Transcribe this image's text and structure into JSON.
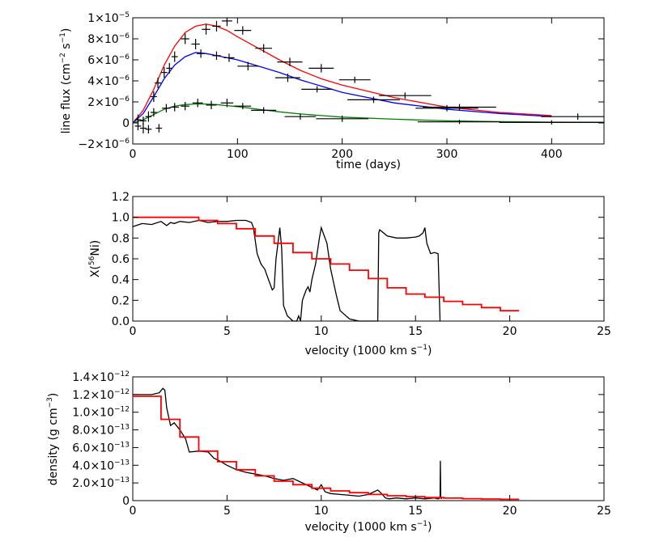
{
  "chart_data": [
    {
      "id": "lightcurve",
      "type": "line",
      "xlabel": "time (days)",
      "ylabel_parts": {
        "pre": "line flux (cm",
        "exp1": "−2",
        "mid": " s",
        "exp2": "−1",
        "post": ")"
      },
      "xlim": [
        0,
        450
      ],
      "ylim": [
        -2e-06,
        1e-05
      ],
      "xticks": [
        {
          "v": 0,
          "label": "0"
        },
        {
          "v": 100,
          "label": "100"
        },
        {
          "v": 200,
          "label": "200"
        },
        {
          "v": 300,
          "label": "300"
        },
        {
          "v": 400,
          "label": "400"
        }
      ],
      "yticks": [
        {
          "v": -2e-06,
          "mant": "−2×10",
          "exp": "−6"
        },
        {
          "v": 0,
          "mant": "0",
          "exp": ""
        },
        {
          "v": 2e-06,
          "mant": "2×10",
          "exp": "−6"
        },
        {
          "v": 4e-06,
          "mant": "4×10",
          "exp": "−6"
        },
        {
          "v": 6e-06,
          "mant": "6×10",
          "exp": "−6"
        },
        {
          "v": 8e-06,
          "mant": "8×10",
          "exp": "−6"
        },
        {
          "v": 1e-05,
          "mant": "1×10",
          "exp": "−5"
        }
      ],
      "series": [
        {
          "name": "red model",
          "color": "#ff0000",
          "x": [
            0,
            10,
            20,
            30,
            40,
            50,
            60,
            70,
            80,
            90,
            100,
            120,
            140,
            160,
            180,
            200,
            250,
            300,
            350,
            400
          ],
          "y": [
            0,
            1.2e-06,
            3.2e-06,
            5.5e-06,
            7.3e-06,
            8.6e-06,
            9.2e-06,
            9.4e-06,
            9.2e-06,
            8.8e-06,
            8.2e-06,
            7.1e-06,
            6e-06,
            5e-06,
            4.2e-06,
            3.6e-06,
            2.4e-06,
            1.5e-06,
            1e-06,
            7e-07
          ]
        },
        {
          "name": "blue model",
          "color": "#0000ff",
          "x": [
            0,
            10,
            20,
            30,
            40,
            50,
            60,
            70,
            80,
            90,
            100,
            120,
            140,
            160,
            180,
            200,
            250,
            300,
            350,
            400
          ],
          "y": [
            0,
            9e-07,
            2.5e-06,
            4.2e-06,
            5.5e-06,
            6.3e-06,
            6.7e-06,
            6.6e-06,
            6.4e-06,
            6.2e-06,
            6e-06,
            5.4e-06,
            4.8e-06,
            4.1e-06,
            3.5e-06,
            2.9e-06,
            1.9e-06,
            1.3e-06,
            9e-07,
            6e-07
          ]
        },
        {
          "name": "green model",
          "color": "#008000",
          "x": [
            0,
            10,
            20,
            30,
            40,
            50,
            60,
            70,
            80,
            90,
            100,
            120,
            140,
            160,
            180,
            200,
            250,
            300,
            350,
            400,
            450
          ],
          "y": [
            0,
            3e-07,
            8e-07,
            1.3e-06,
            1.6e-06,
            1.75e-06,
            1.8e-06,
            1.8e-06,
            1.75e-06,
            1.65e-06,
            1.55e-06,
            1.3e-06,
            1.05e-06,
            8.5e-07,
            7e-07,
            5.5e-07,
            3.5e-07,
            2e-07,
            1.2e-07,
            8e-08,
            6e-08
          ]
        }
      ],
      "data_points": [
        {
          "name": "upper measurements",
          "points": [
            {
              "x": 5,
              "y": 3e-07,
              "xerr": 3,
              "yerr": 5e-07
            },
            {
              "x": 10,
              "y": -5e-07,
              "xerr": 3,
              "yerr": 5e-07
            },
            {
              "x": 15,
              "y": 6e-07,
              "xerr": 3,
              "yerr": 5e-07
            },
            {
              "x": 20,
              "y": 2.5e-06,
              "xerr": 3,
              "yerr": 5e-07
            },
            {
              "x": 24,
              "y": 3.8e-06,
              "xerr": 3,
              "yerr": 5e-07
            },
            {
              "x": 30,
              "y": 4.8e-06,
              "xerr": 3,
              "yerr": 5e-07
            },
            {
              "x": 35,
              "y": 5.2e-06,
              "xerr": 3,
              "yerr": 5e-07
            },
            {
              "x": 40,
              "y": 6.3e-06,
              "xerr": 3,
              "yerr": 5e-07
            },
            {
              "x": 50,
              "y": 8e-06,
              "xerr": 4,
              "yerr": 5e-07
            },
            {
              "x": 60,
              "y": 7.5e-06,
              "xerr": 4,
              "yerr": 5e-07
            },
            {
              "x": 70,
              "y": 8.9e-06,
              "xerr": 4,
              "yerr": 5e-07
            },
            {
              "x": 80,
              "y": 9.2e-06,
              "xerr": 4,
              "yerr": 5e-07
            },
            {
              "x": 90,
              "y": 9.7e-06,
              "xerr": 5,
              "yerr": 5e-07
            },
            {
              "x": 105,
              "y": 8.8e-06,
              "xerr": 8,
              "yerr": 4e-07
            },
            {
              "x": 125,
              "y": 7.1e-06,
              "xerr": 8,
              "yerr": 4e-07
            },
            {
              "x": 150,
              "y": 5.8e-06,
              "xerr": 12,
              "yerr": 4e-07
            },
            {
              "x": 180,
              "y": 5.2e-06,
              "xerr": 12,
              "yerr": 4e-07
            },
            {
              "x": 212,
              "y": 4.1e-06,
              "xerr": 15,
              "yerr": 3e-07
            },
            {
              "x": 260,
              "y": 2.6e-06,
              "xerr": 25,
              "yerr": 3e-07
            },
            {
              "x": 312,
              "y": 1.5e-06,
              "xerr": 35,
              "yerr": 3e-07
            },
            {
              "x": 425,
              "y": 6e-07,
              "xerr": 35,
              "yerr": 3e-07
            }
          ]
        },
        {
          "name": "middle measurements",
          "points": [
            {
              "x": 65,
              "y": 6.6e-06,
              "xerr": 4,
              "yerr": 4e-07
            },
            {
              "x": 80,
              "y": 6.4e-06,
              "xerr": 4,
              "yerr": 4e-07
            },
            {
              "x": 92,
              "y": 6.2e-06,
              "xerr": 5,
              "yerr": 4e-07
            },
            {
              "x": 110,
              "y": 5.4e-06,
              "xerr": 10,
              "yerr": 4e-07
            },
            {
              "x": 148,
              "y": 4.3e-06,
              "xerr": 12,
              "yerr": 4e-07
            },
            {
              "x": 176,
              "y": 3.2e-06,
              "xerr": 15,
              "yerr": 3e-07
            },
            {
              "x": 230,
              "y": 2.2e-06,
              "xerr": 25,
              "yerr": 3e-07
            },
            {
              "x": 300,
              "y": 1.4e-06,
              "xerr": 30,
              "yerr": 3e-07
            }
          ]
        },
        {
          "name": "lower measurements",
          "points": [
            {
              "x": 5,
              "y": -3e-07,
              "xerr": 3,
              "yerr": 4e-07
            },
            {
              "x": 10,
              "y": 2e-07,
              "xerr": 3,
              "yerr": 4e-07
            },
            {
              "x": 15,
              "y": -6e-07,
              "xerr": 3,
              "yerr": 4e-07
            },
            {
              "x": 20,
              "y": 1e-06,
              "xerr": 3,
              "yerr": 4e-07
            },
            {
              "x": 25,
              "y": -5e-07,
              "xerr": 3,
              "yerr": 4e-07
            },
            {
              "x": 32,
              "y": 1.4e-06,
              "xerr": 4,
              "yerr": 4e-07
            },
            {
              "x": 40,
              "y": 1.5e-06,
              "xerr": 4,
              "yerr": 4e-07
            },
            {
              "x": 50,
              "y": 1.6e-06,
              "xerr": 4,
              "yerr": 4e-07
            },
            {
              "x": 62,
              "y": 1.9e-06,
              "xerr": 5,
              "yerr": 4e-07
            },
            {
              "x": 75,
              "y": 1.7e-06,
              "xerr": 5,
              "yerr": 4e-07
            },
            {
              "x": 90,
              "y": 1.9e-06,
              "xerr": 6,
              "yerr": 4e-07
            },
            {
              "x": 105,
              "y": 1.6e-06,
              "xerr": 8,
              "yerr": 3e-07
            },
            {
              "x": 125,
              "y": 1.2e-06,
              "xerr": 12,
              "yerr": 3e-07
            },
            {
              "x": 160,
              "y": 6e-07,
              "xerr": 15,
              "yerr": 3e-07
            },
            {
              "x": 200,
              "y": 4e-07,
              "xerr": 25,
              "yerr": 3e-07
            },
            {
              "x": 312,
              "y": 1e-07,
              "xerr": 40,
              "yerr": 2e-07
            },
            {
              "x": 400,
              "y": 5e-08,
              "xerr": 50,
              "yerr": 2e-07
            }
          ]
        }
      ]
    },
    {
      "id": "nickel",
      "type": "line",
      "xlabel_parts": {
        "pre": "velocity (1000 km s",
        "exp": "−1",
        "post": ")"
      },
      "ylabel_parts": {
        "pre": "X(",
        "sup": "56",
        "post": "Ni)"
      },
      "xlim": [
        0,
        25
      ],
      "ylim": [
        0,
        1.2
      ],
      "xticks": [
        {
          "v": 0,
          "label": "0"
        },
        {
          "v": 5,
          "label": "5"
        },
        {
          "v": 10,
          "label": "10"
        },
        {
          "v": 15,
          "label": "15"
        },
        {
          "v": 20,
          "label": "20"
        },
        {
          "v": 25,
          "label": "25"
        }
      ],
      "yticks": [
        {
          "v": 0.0,
          "label": "0.0"
        },
        {
          "v": 0.2,
          "label": "0.2"
        },
        {
          "v": 0.4,
          "label": "0.4"
        },
        {
          "v": 0.6,
          "label": "0.6"
        },
        {
          "v": 0.8,
          "label": "0.8"
        },
        {
          "v": 1.0,
          "label": "1.0"
        },
        {
          "v": 1.2,
          "label": "1.2"
        }
      ],
      "series": [
        {
          "name": "black profile",
          "color": "#000000",
          "step": false,
          "x": [
            0,
            0.5,
            1.0,
            1.5,
            1.8,
            2.0,
            2.2,
            2.5,
            3.0,
            3.5,
            4.0,
            4.5,
            5.0,
            5.5,
            6.0,
            6.3,
            6.4,
            6.6,
            6.8,
            7.0,
            7.2,
            7.4,
            7.5,
            7.6,
            7.7,
            7.8,
            7.9,
            8.0,
            8.2,
            8.5,
            8.7,
            8.8,
            8.9,
            9.0,
            9.1,
            9.2,
            9.3,
            9.4,
            9.5,
            9.7,
            9.9,
            10.0,
            10.1,
            10.3,
            10.5,
            10.8,
            11.0,
            11.5,
            12.0,
            12.2,
            12.4,
            12.6,
            12.8,
            12.9,
            13.0,
            13.05,
            13.1,
            13.5,
            14.0,
            14.5,
            15.0,
            15.2,
            15.4,
            15.5,
            15.6,
            15.8,
            16.0,
            16.2,
            16.3
          ],
          "y": [
            0.91,
            0.94,
            0.93,
            0.96,
            0.92,
            0.95,
            0.94,
            0.96,
            0.95,
            0.97,
            0.95,
            0.96,
            0.96,
            0.97,
            0.97,
            0.95,
            0.9,
            0.65,
            0.55,
            0.5,
            0.4,
            0.3,
            0.32,
            0.6,
            0.75,
            0.9,
            0.7,
            0.15,
            0.05,
            0.0,
            0.0,
            0.05,
            0.0,
            0.2,
            0.25,
            0.3,
            0.33,
            0.28,
            0.4,
            0.55,
            0.8,
            0.9,
            0.85,
            0.75,
            0.5,
            0.25,
            0.1,
            0.02,
            0.0,
            0.0,
            0.0,
            0.0,
            0.0,
            0.0,
            0.0,
            0.85,
            0.88,
            0.82,
            0.8,
            0.8,
            0.81,
            0.82,
            0.85,
            0.9,
            0.75,
            0.65,
            0.66,
            0.65,
            0.0
          ]
        },
        {
          "name": "red step profile",
          "color": "#ff0000",
          "step": true,
          "edges": [
            0,
            1.5,
            2.5,
            3.5,
            4.5,
            5.5,
            6.5,
            7.5,
            8.5,
            9.5,
            10.5,
            11.5,
            12.5,
            13.5,
            14.5,
            15.5,
            16.5,
            17.5,
            18.5,
            19.5,
            20.5
          ],
          "values": [
            1.0,
            1.0,
            1.0,
            0.97,
            0.94,
            0.89,
            0.82,
            0.75,
            0.66,
            0.6,
            0.55,
            0.49,
            0.41,
            0.32,
            0.26,
            0.23,
            0.19,
            0.16,
            0.13,
            0.1
          ]
        }
      ]
    },
    {
      "id": "density",
      "type": "line",
      "xlabel_parts": {
        "pre": "velocity (1000 km s",
        "exp": "−1",
        "post": ")"
      },
      "ylabel_parts": {
        "pre": "density (g cm",
        "exp": "−3",
        "post": ")"
      },
      "xlim": [
        0,
        25
      ],
      "ylim": [
        0,
        1.4e-12
      ],
      "xticks": [
        {
          "v": 0,
          "label": "0"
        },
        {
          "v": 5,
          "label": "5"
        },
        {
          "v": 10,
          "label": "10"
        },
        {
          "v": 15,
          "label": "15"
        },
        {
          "v": 20,
          "label": "20"
        },
        {
          "v": 25,
          "label": "25"
        }
      ],
      "yticks": [
        {
          "v": 0,
          "mant": "0",
          "exp": ""
        },
        {
          "v": 2e-13,
          "mant": "2.0×10",
          "exp": "−13"
        },
        {
          "v": 4e-13,
          "mant": "4.0×10",
          "exp": "−13"
        },
        {
          "v": 6e-13,
          "mant": "6.0×10",
          "exp": "−13"
        },
        {
          "v": 8e-13,
          "mant": "8.0×10",
          "exp": "−13"
        },
        {
          "v": 1e-12,
          "mant": "1.0×10",
          "exp": "−12"
        },
        {
          "v": 1.2e-12,
          "mant": "1.2×10",
          "exp": "−12"
        },
        {
          "v": 1.4e-12,
          "mant": "1.4×10",
          "exp": "−12"
        }
      ],
      "series": [
        {
          "name": "black profile",
          "color": "#000000",
          "step": false,
          "x": [
            0,
            0.5,
            1.0,
            1.4,
            1.6,
            1.7,
            1.8,
            2.0,
            2.2,
            2.5,
            2.8,
            3.0,
            3.5,
            4.0,
            4.3,
            4.6,
            5.0,
            5.5,
            6.0,
            6.5,
            7.0,
            7.5,
            8.0,
            8.5,
            9.0,
            9.5,
            9.8,
            10.0,
            10.2,
            10.5,
            11.0,
            11.5,
            12.0,
            12.5,
            12.8,
            13.0,
            13.2,
            13.4,
            13.6,
            14.0,
            14.5,
            15.0,
            15.5,
            16.0,
            16.2,
            16.3,
            16.32,
            16.34,
            16.4
          ],
          "y": [
            1.2e-12,
            1.2e-12,
            1.2e-12,
            1.22e-12,
            1.27e-12,
            1.25e-12,
            1.05e-12,
            8.5e-13,
            8.8e-13,
            8e-13,
            7e-13,
            5.5e-13,
            5.6e-13,
            5.5e-13,
            4.8e-13,
            4.5e-13,
            4e-13,
            3.5e-13,
            3.2e-13,
            3e-13,
            2.8e-13,
            2.5e-13,
            2.3e-13,
            2.5e-13,
            2e-13,
            1.5e-13,
            1.2e-13,
            1.8e-13,
            1e-13,
            8e-14,
            7e-14,
            6e-14,
            5e-14,
            7e-14,
            1e-13,
            1.2e-13,
            8e-14,
            3e-14,
            2e-14,
            3e-14,
            2e-14,
            3e-14,
            2e-14,
            3e-14,
            2e-14,
            3e-14,
            4.5e-13,
            3e-14,
            2e-14
          ]
        },
        {
          "name": "red step profile",
          "color": "#ff0000",
          "step": true,
          "edges": [
            0,
            1.5,
            2.5,
            3.5,
            4.5,
            5.5,
            6.5,
            7.5,
            8.5,
            9.5,
            10.5,
            11.5,
            12.5,
            13.5,
            14.5,
            15.5,
            16.5,
            17.5,
            18.5,
            19.5,
            20.5
          ],
          "values": [
            1.18e-12,
            9.2e-13,
            7.2e-13,
            5.6e-13,
            4.4e-13,
            3.5e-13,
            2.8e-13,
            2.2e-13,
            1.8e-13,
            1.4e-13,
            1.1e-13,
            9e-14,
            7e-14,
            5.5e-14,
            4.5e-14,
            3.5e-14,
            2.8e-14,
            2.2e-14,
            1.8e-14,
            1.5e-14
          ]
        }
      ]
    }
  ]
}
